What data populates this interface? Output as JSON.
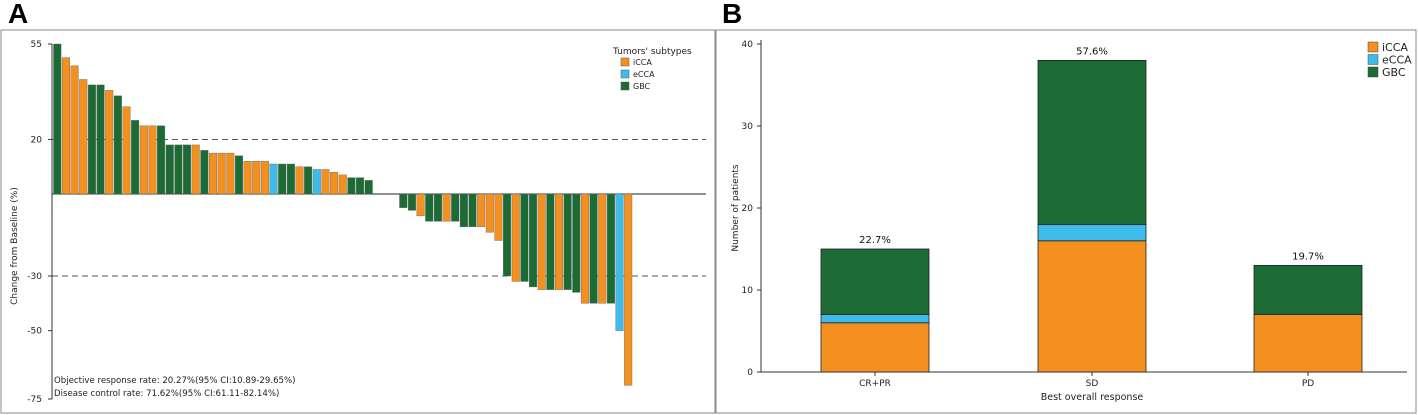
{
  "panel_labels": {
    "a": "A",
    "b": "B"
  },
  "colors": {
    "iCCA": "#f39020",
    "eCCA": "#3dbcec",
    "GBC": "#1c6b34"
  },
  "chart_data": [
    {
      "type": "bar",
      "subtype": "waterfall",
      "title": "",
      "ylabel": "Change from Baseline (%)",
      "xlabel": "",
      "ylim": [
        -75,
        55
      ],
      "yticks": [
        55,
        20,
        -30,
        -50,
        -75
      ],
      "reference_lines": [
        20,
        -30
      ],
      "legend": {
        "title": "Tumors' subtypes",
        "position": "top-right",
        "entries": [
          "iCCA",
          "eCCA",
          "GBC"
        ]
      },
      "bars": [
        {
          "v": 55,
          "t": "GBC"
        },
        {
          "v": 50,
          "t": "iCCA"
        },
        {
          "v": 47,
          "t": "iCCA"
        },
        {
          "v": 42,
          "t": "iCCA"
        },
        {
          "v": 40,
          "t": "GBC"
        },
        {
          "v": 40,
          "t": "GBC"
        },
        {
          "v": 38,
          "t": "iCCA"
        },
        {
          "v": 36,
          "t": "GBC"
        },
        {
          "v": 32,
          "t": "iCCA"
        },
        {
          "v": 27,
          "t": "GBC"
        },
        {
          "v": 25,
          "t": "iCCA"
        },
        {
          "v": 25,
          "t": "iCCA"
        },
        {
          "v": 25,
          "t": "GBC"
        },
        {
          "v": 18,
          "t": "GBC"
        },
        {
          "v": 18,
          "t": "GBC"
        },
        {
          "v": 18,
          "t": "GBC"
        },
        {
          "v": 18,
          "t": "iCCA"
        },
        {
          "v": 16,
          "t": "GBC"
        },
        {
          "v": 15,
          "t": "iCCA"
        },
        {
          "v": 15,
          "t": "iCCA"
        },
        {
          "v": 15,
          "t": "iCCA"
        },
        {
          "v": 14,
          "t": "GBC"
        },
        {
          "v": 12,
          "t": "iCCA"
        },
        {
          "v": 12,
          "t": "iCCA"
        },
        {
          "v": 12,
          "t": "iCCA"
        },
        {
          "v": 11,
          "t": "eCCA"
        },
        {
          "v": 11,
          "t": "GBC"
        },
        {
          "v": 11,
          "t": "GBC"
        },
        {
          "v": 10,
          "t": "iCCA"
        },
        {
          "v": 10,
          "t": "GBC"
        },
        {
          "v": 9,
          "t": "eCCA"
        },
        {
          "v": 9,
          "t": "iCCA"
        },
        {
          "v": 8,
          "t": "iCCA"
        },
        {
          "v": 7,
          "t": "iCCA"
        },
        {
          "v": 6,
          "t": "GBC"
        },
        {
          "v": 6,
          "t": "GBC"
        },
        {
          "v": 5,
          "t": "GBC"
        },
        {
          "v": 0,
          "t": "GBC"
        },
        {
          "v": 0,
          "t": "GBC"
        },
        {
          "v": 0,
          "t": "GBC"
        },
        {
          "v": -5,
          "t": "GBC"
        },
        {
          "v": -6,
          "t": "GBC"
        },
        {
          "v": -8,
          "t": "iCCA"
        },
        {
          "v": -10,
          "t": "GBC"
        },
        {
          "v": -10,
          "t": "GBC"
        },
        {
          "v": -10,
          "t": "iCCA"
        },
        {
          "v": -10,
          "t": "GBC"
        },
        {
          "v": -12,
          "t": "GBC"
        },
        {
          "v": -12,
          "t": "GBC"
        },
        {
          "v": -12,
          "t": "iCCA"
        },
        {
          "v": -14,
          "t": "iCCA"
        },
        {
          "v": -17,
          "t": "iCCA"
        },
        {
          "v": -30,
          "t": "GBC"
        },
        {
          "v": -32,
          "t": "iCCA"
        },
        {
          "v": -32,
          "t": "GBC"
        },
        {
          "v": -34,
          "t": "GBC"
        },
        {
          "v": -35,
          "t": "iCCA"
        },
        {
          "v": -35,
          "t": "GBC"
        },
        {
          "v": -35,
          "t": "iCCA"
        },
        {
          "v": -35,
          "t": "GBC"
        },
        {
          "v": -36,
          "t": "GBC"
        },
        {
          "v": -40,
          "t": "iCCA"
        },
        {
          "v": -40,
          "t": "GBC"
        },
        {
          "v": -40,
          "t": "iCCA"
        },
        {
          "v": -40,
          "t": "GBC"
        },
        {
          "v": -50,
          "t": "eCCA"
        },
        {
          "v": -70,
          "t": "iCCA"
        }
      ],
      "annotations": [
        "Objective response rate: 20.27%(95% CI:10.89-29.65%)",
        "Disease control rate: 71.62%(95% CI:61.11-82.14%)"
      ]
    },
    {
      "type": "bar",
      "subtype": "stacked",
      "title": "",
      "xlabel": "Best overall response",
      "ylabel": "Number of patients",
      "ylim": [
        0,
        40
      ],
      "yticks": [
        0,
        10,
        20,
        30,
        40
      ],
      "categories": [
        "CR+PR",
        "SD",
        "PD"
      ],
      "series": [
        {
          "name": "iCCA",
          "values": [
            6,
            16,
            7
          ]
        },
        {
          "name": "eCCA",
          "values": [
            1,
            2,
            0
          ]
        },
        {
          "name": "GBC",
          "values": [
            8,
            20,
            6
          ]
        }
      ],
      "data_labels": [
        "22.7%",
        "57.6%",
        "19.7%"
      ],
      "legend": {
        "position": "top-right",
        "entries": [
          "iCCA",
          "eCCA",
          "GBC"
        ]
      }
    }
  ]
}
